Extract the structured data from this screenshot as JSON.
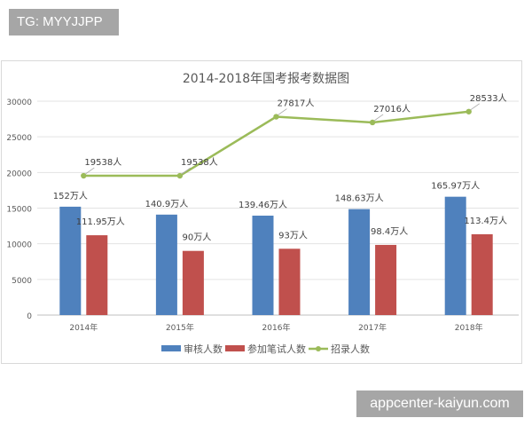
{
  "watermarks": {
    "top_left": "TG: MYYJJPP",
    "bottom_right": "appcenter-kaiyun.com"
  },
  "chart_data": {
    "type": "bar",
    "title": "2014-2018年国考报考数据图",
    "categories": [
      "2014年",
      "2015年",
      "2016年",
      "2017年",
      "2018年"
    ],
    "ylim": [
      0,
      30000
    ],
    "yticks": [
      0,
      5000,
      10000,
      15000,
      20000,
      25000,
      30000
    ],
    "grid": true,
    "legend_position": "bottom",
    "series": [
      {
        "name": "审核人数",
        "type": "bar",
        "color": "#4f81bd",
        "values": [
          15200,
          14090,
          13946,
          14863,
          16597
        ],
        "labels": [
          "152万人",
          "140.9万人",
          "139.46万人",
          "148.63万人",
          "165.97万人"
        ]
      },
      {
        "name": "参加笔试人数",
        "type": "bar",
        "color": "#c0504d",
        "values": [
          11195,
          9000,
          9300,
          9840,
          11340
        ],
        "labels": [
          "111.95万人",
          "90万人",
          "93万人",
          "98.4万人",
          "113.4万人"
        ]
      },
      {
        "name": "招录人数",
        "type": "line",
        "color": "#9bbb59",
        "values": [
          19538,
          19538,
          27817,
          27016,
          28533
        ],
        "labels": [
          "19538人",
          "19538人",
          "27817人",
          "27016人",
          "28533人"
        ]
      }
    ]
  }
}
